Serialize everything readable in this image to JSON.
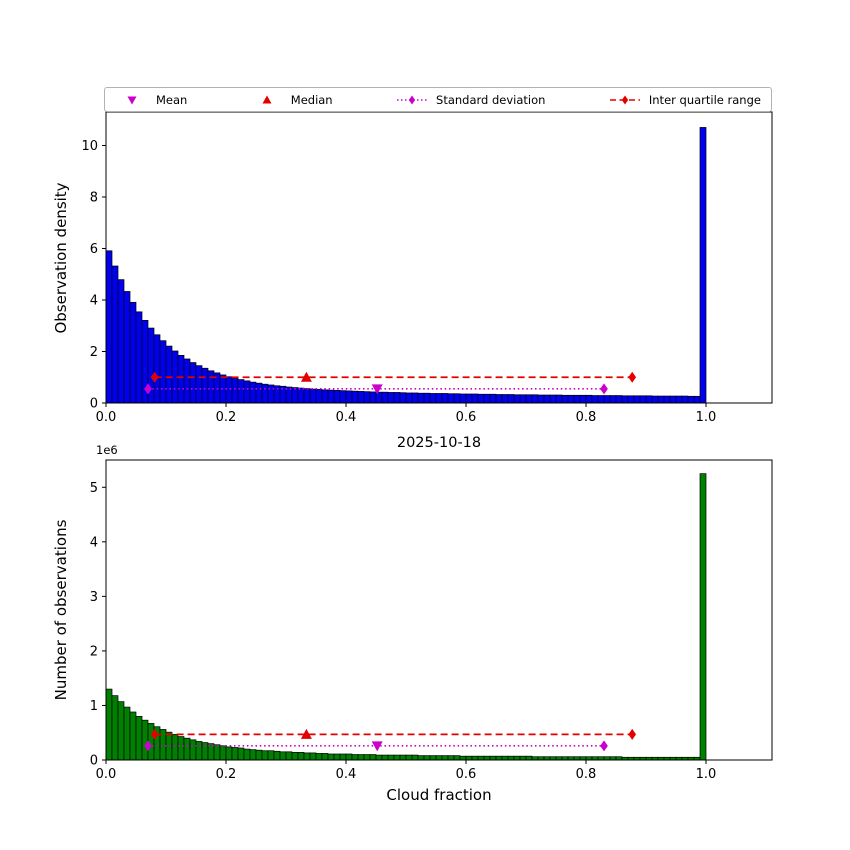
{
  "figure": {
    "title": "2025-10-18",
    "background": "#ffffff",
    "legend": {
      "items": [
        {
          "label": "Mean",
          "marker": "triangle-down",
          "color": "#cc00cc",
          "linestyle": "none"
        },
        {
          "label": "Median",
          "marker": "triangle-up",
          "color": "#e50000",
          "linestyle": "none"
        },
        {
          "label": "Standard deviation",
          "marker": "diamond",
          "color": "#cc00cc",
          "linestyle": "dotted"
        },
        {
          "label": "Inter quartile range",
          "marker": "diamond",
          "color": "#e50000",
          "linestyle": "dashed"
        }
      ]
    }
  },
  "marker_colors": {
    "mean": "#cc00cc",
    "median": "#e50000",
    "std": "#cc00cc",
    "iqr": "#e50000"
  },
  "chart_data": [
    {
      "type": "bar",
      "name": "observation-density-histogram",
      "title": "",
      "xlabel": "",
      "ylabel": "Observation density",
      "bar_color": "#0000ee",
      "bar_edge_color": "#000000",
      "bin_start": 0.0,
      "bin_width": 0.01,
      "xlim": [
        0,
        1.11
      ],
      "ylim": [
        0,
        11.3
      ],
      "grid": false,
      "xticks": [
        0.0,
        0.2,
        0.4,
        0.6,
        0.8,
        1.0
      ],
      "xtick_labels": [
        "0.0",
        "0.2",
        "0.4",
        "0.6",
        "0.8",
        "1.0"
      ],
      "yticks": [
        0,
        2,
        4,
        6,
        8,
        10
      ],
      "ytick_labels": [
        "0",
        "2",
        "4",
        "6",
        "8",
        "10"
      ],
      "values": [
        5.91,
        5.32,
        4.79,
        4.33,
        3.91,
        3.54,
        3.21,
        2.91,
        2.65,
        2.42,
        2.21,
        2.02,
        1.85,
        1.71,
        1.57,
        1.45,
        1.35,
        1.25,
        1.17,
        1.09,
        1.02,
        0.96,
        0.91,
        0.86,
        0.81,
        0.77,
        0.73,
        0.7,
        0.67,
        0.65,
        0.62,
        0.6,
        0.58,
        0.56,
        0.54,
        0.53,
        0.51,
        0.5,
        0.49,
        0.48,
        0.47,
        0.46,
        0.45,
        0.44,
        0.43,
        0.42,
        0.42,
        0.41,
        0.41,
        0.4,
        0.39,
        0.39,
        0.38,
        0.38,
        0.37,
        0.37,
        0.37,
        0.36,
        0.36,
        0.35,
        0.35,
        0.35,
        0.34,
        0.34,
        0.34,
        0.33,
        0.33,
        0.33,
        0.32,
        0.32,
        0.32,
        0.32,
        0.31,
        0.31,
        0.31,
        0.31,
        0.3,
        0.3,
        0.3,
        0.3,
        0.3,
        0.29,
        0.29,
        0.29,
        0.29,
        0.29,
        0.28,
        0.28,
        0.28,
        0.28,
        0.28,
        0.27,
        0.27,
        0.27,
        0.27,
        0.27,
        0.27,
        0.26,
        0.26,
        10.7
      ],
      "markers": {
        "mean": {
          "x": 0.452,
          "y": 0.55
        },
        "median": {
          "x": 0.334,
          "y": 1.0
        },
        "std": {
          "x1": 0.07,
          "x2": 0.83,
          "y": 0.55
        },
        "iqr": {
          "x1": 0.081,
          "x2": 0.877,
          "y": 1.0
        }
      }
    },
    {
      "type": "bar",
      "name": "observation-count-histogram",
      "title": "2025-10-18",
      "xlabel": "Cloud fraction",
      "ylabel": "Number of observations",
      "y_offset_text": "1e6",
      "y_unit": "1e6 observations",
      "bar_color": "#008000",
      "bar_edge_color": "#000000",
      "bin_start": 0.0,
      "bin_width": 0.01,
      "xlim": [
        0,
        1.11
      ],
      "ylim": [
        0,
        5.5
      ],
      "grid": false,
      "xticks": [
        0.0,
        0.2,
        0.4,
        0.6,
        0.8,
        1.0
      ],
      "xtick_labels": [
        "0.0",
        "0.2",
        "0.4",
        "0.6",
        "0.8",
        "1.0"
      ],
      "yticks": [
        0,
        1,
        2,
        3,
        4,
        5
      ],
      "ytick_labels": [
        "0",
        "1",
        "2",
        "3",
        "4",
        "5"
      ],
      "values": [
        1.3,
        1.18,
        1.07,
        0.97,
        0.88,
        0.8,
        0.73,
        0.67,
        0.61,
        0.56,
        0.51,
        0.47,
        0.43,
        0.4,
        0.37,
        0.34,
        0.32,
        0.3,
        0.28,
        0.26,
        0.24,
        0.23,
        0.22,
        0.2,
        0.19,
        0.18,
        0.17,
        0.17,
        0.16,
        0.15,
        0.15,
        0.14,
        0.14,
        0.13,
        0.13,
        0.12,
        0.12,
        0.11,
        0.11,
        0.11,
        0.11,
        0.1,
        0.1,
        0.1,
        0.1,
        0.09,
        0.09,
        0.09,
        0.09,
        0.09,
        0.09,
        0.09,
        0.08,
        0.08,
        0.08,
        0.08,
        0.08,
        0.08,
        0.08,
        0.07,
        0.07,
        0.07,
        0.07,
        0.07,
        0.07,
        0.07,
        0.07,
        0.07,
        0.07,
        0.07,
        0.07,
        0.06,
        0.06,
        0.06,
        0.06,
        0.06,
        0.06,
        0.06,
        0.06,
        0.06,
        0.06,
        0.06,
        0.06,
        0.06,
        0.06,
        0.06,
        0.05,
        0.05,
        0.05,
        0.05,
        0.05,
        0.05,
        0.05,
        0.05,
        0.05,
        0.05,
        0.05,
        0.05,
        0.05,
        5.25
      ],
      "markers": {
        "mean": {
          "x": 0.452,
          "y": 0.26
        },
        "median": {
          "x": 0.334,
          "y": 0.47
        },
        "std": {
          "x1": 0.07,
          "x2": 0.83,
          "y": 0.26
        },
        "iqr": {
          "x1": 0.081,
          "x2": 0.877,
          "y": 0.47
        }
      }
    }
  ]
}
